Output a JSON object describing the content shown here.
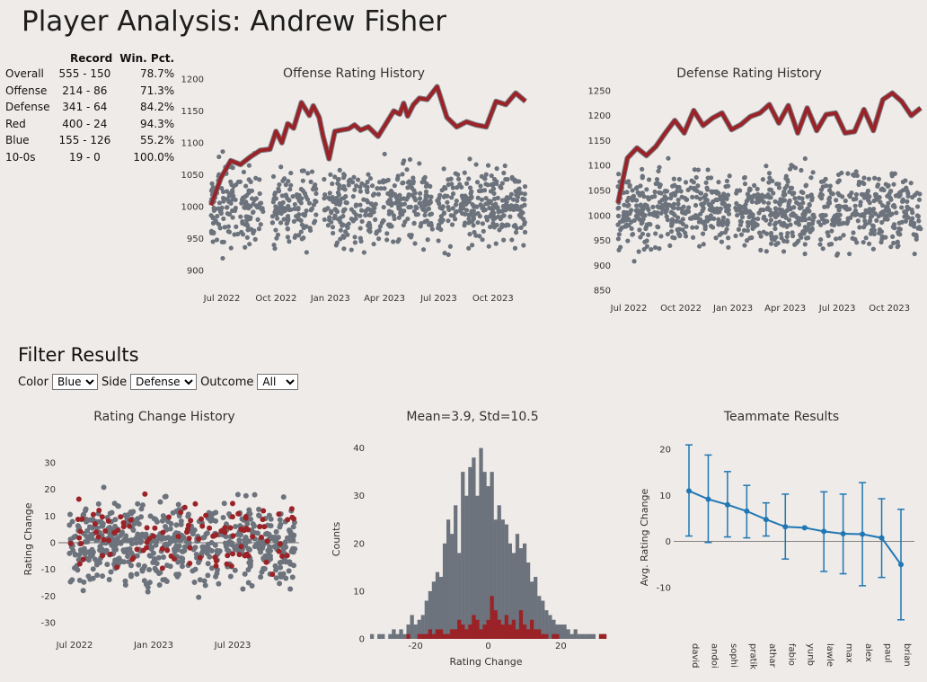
{
  "title": "Player Analysis: Andrew Fisher",
  "stats": {
    "headers": [
      "",
      "Record",
      "Win. Pct."
    ],
    "rows": [
      {
        "label": "Overall",
        "record": "555 - 150",
        "pct": "78.7%"
      },
      {
        "label": "Offense",
        "record": "214 - 86",
        "pct": "71.3%"
      },
      {
        "label": "Defense",
        "record": "341 - 64",
        "pct": "84.2%"
      },
      {
        "label": "Red",
        "record": "400 - 24",
        "pct": "94.3%"
      },
      {
        "label": "Blue",
        "record": "155 - 126",
        "pct": "55.2%"
      },
      {
        "label": "10-0s",
        "record": "19 - 0",
        "pct": "100.0%"
      }
    ]
  },
  "filters": {
    "heading": "Filter Results",
    "color_label": "Color",
    "color_value": "Blue",
    "side_label": "Side",
    "side_value": "Defense",
    "outcome_label": "Outcome",
    "outcome_value": "All"
  },
  "colors": {
    "red": "#9b2226",
    "gray": "#6c737c",
    "blue": "#1f77b4",
    "background": "#efebe8"
  },
  "chart_data": [
    {
      "id": "offense",
      "type": "line",
      "title": "Offense Rating History",
      "xlabel": "",
      "ylabel": "",
      "x_ticks": [
        "Jul 2022",
        "Oct 2022",
        "Jan 2023",
        "Apr 2023",
        "Jul 2023",
        "Oct 2023"
      ],
      "y_ticks": [
        900,
        950,
        1000,
        1050,
        1100,
        1150,
        1200
      ],
      "ylim": [
        880,
        1200
      ],
      "series": [
        {
          "color": "#9b2226",
          "x": [
            0,
            0.5,
            1,
            1.5,
            2,
            2.5,
            3,
            3.3,
            3.6,
            3.9,
            4.2,
            4.6,
            5,
            5.2,
            5.5,
            5.7,
            6,
            6.3,
            6.6,
            7,
            7.3,
            7.6,
            8,
            8.5,
            9,
            9.3,
            9.6,
            9.8,
            10,
            10.3,
            10.6,
            11,
            11.5,
            12,
            12.5,
            13,
            13.5,
            14,
            14.5,
            15,
            15.5,
            16
          ],
          "y": [
            1002,
            1045,
            1072,
            1066,
            1078,
            1088,
            1090,
            1118,
            1100,
            1130,
            1123,
            1163,
            1143,
            1158,
            1140,
            1110,
            1075,
            1118,
            1120,
            1122,
            1128,
            1120,
            1125,
            1110,
            1135,
            1150,
            1145,
            1162,
            1142,
            1160,
            1170,
            1168,
            1188,
            1140,
            1125,
            1133,
            1128,
            1125,
            1165,
            1160,
            1178,
            1165
          ]
        }
      ],
      "scatter_note": "Opponent ratings shown as gray points, roughly 900–1100 across the full date range"
    },
    {
      "id": "defense",
      "type": "line",
      "title": "Defense Rating History",
      "xlabel": "",
      "ylabel": "",
      "x_ticks": [
        "Jul 2022",
        "Oct 2022",
        "Jan 2023",
        "Apr 2023",
        "Jul 2023",
        "Oct 2023"
      ],
      "y_ticks": [
        850,
        900,
        950,
        1000,
        1050,
        1100,
        1150,
        1200,
        1250
      ],
      "ylim": [
        845,
        1255
      ],
      "series": [
        {
          "color": "#9b2226",
          "x": [
            0,
            0.5,
            1,
            1.5,
            2,
            2.5,
            3,
            3.5,
            4,
            4.5,
            5,
            5.5,
            6,
            6.5,
            7,
            7.5,
            8,
            8.5,
            9,
            9.5,
            10,
            10.5,
            11,
            11.5,
            12,
            12.5,
            13,
            13.5,
            14,
            14.5,
            15,
            15.5,
            16
          ],
          "y": [
            1025,
            1115,
            1135,
            1120,
            1138,
            1165,
            1190,
            1165,
            1210,
            1180,
            1195,
            1205,
            1172,
            1182,
            1198,
            1205,
            1222,
            1185,
            1220,
            1165,
            1215,
            1170,
            1202,
            1205,
            1165,
            1168,
            1212,
            1170,
            1232,
            1245,
            1228,
            1200,
            1215
          ]
        }
      ],
      "scatter_note": "Opponent ratings shown as gray points, roughly 870–1160 across the full date range"
    },
    {
      "id": "change",
      "type": "scatter",
      "title": "Rating Change History",
      "xlabel": "",
      "ylabel": "Rating Change",
      "x_ticks": [
        "Jul 2022",
        "Jan 2023",
        "Jul 2023"
      ],
      "y_ticks": [
        -30,
        -20,
        -10,
        0,
        10,
        20,
        30
      ],
      "ylim": [
        -35,
        35
      ],
      "series": [
        {
          "color": "#6c737c",
          "note": "all games"
        },
        {
          "color": "#9b2226",
          "note": "filtered games"
        }
      ]
    },
    {
      "id": "hist",
      "type": "bar",
      "title": "Mean=3.9, Std=10.5",
      "xlabel": "Rating Change",
      "ylabel": "Counts",
      "x_ticks": [
        -20,
        0,
        20
      ],
      "y_ticks": [
        0,
        10,
        20,
        30,
        40
      ],
      "xlim": [
        -33,
        33
      ],
      "ylim": [
        0,
        42
      ],
      "bins": [
        -32,
        -31,
        -30,
        -29,
        -28,
        -27,
        -26,
        -25,
        -24,
        -23,
        -22,
        -21,
        -20,
        -19,
        -18,
        -17,
        -16,
        -15,
        -14,
        -13,
        -12,
        -11,
        -10,
        -9,
        -8,
        -7,
        -6,
        -5,
        -4,
        -3,
        -2,
        -1,
        0,
        1,
        2,
        3,
        4,
        5,
        6,
        7,
        8,
        9,
        10,
        11,
        12,
        13,
        14,
        15,
        16,
        17,
        18,
        19,
        20,
        21,
        22,
        23,
        24,
        25,
        26,
        27,
        28,
        29,
        30,
        31,
        32
      ],
      "series": [
        {
          "name": "",
          "color": "#6c737c",
          "values": [
            1,
            0,
            1,
            1,
            0,
            1,
            2,
            1,
            2,
            1,
            3,
            5,
            3,
            4,
            5,
            8,
            10,
            12,
            14,
            13,
            20,
            25,
            22,
            28,
            18,
            35,
            30,
            36,
            38,
            30,
            40,
            35,
            32,
            35,
            25,
            28,
            25,
            24,
            20,
            18,
            22,
            19,
            20,
            16,
            12,
            13,
            9,
            8,
            6,
            5,
            4,
            3,
            3,
            3,
            2,
            1,
            2,
            1,
            1,
            1,
            1,
            1,
            0,
            1,
            1
          ]
        },
        {
          "name": "",
          "color": "#9b2226",
          "values": [
            0,
            0,
            0,
            0,
            0,
            0,
            0,
            0,
            0,
            0,
            1,
            0,
            0,
            1,
            1,
            1,
            2,
            1,
            2,
            2,
            1,
            1,
            2,
            2,
            4,
            3,
            2,
            3,
            5,
            4,
            2,
            3,
            4,
            9,
            6,
            4,
            3,
            5,
            3,
            4,
            2,
            6,
            3,
            2,
            4,
            2,
            2,
            1,
            1,
            0,
            1,
            1,
            0,
            0,
            0,
            0,
            0,
            0,
            0,
            0,
            0,
            0,
            0,
            1,
            1
          ]
        }
      ]
    },
    {
      "id": "teammates",
      "type": "scatter",
      "title": "Teammate Results",
      "xlabel": "",
      "ylabel": "Avg. Rating Change",
      "categories": [
        "david",
        "andoi",
        "sophi",
        "pratik",
        "athar",
        "fabio",
        "yunb",
        "lawle",
        "max",
        "alex",
        "paul",
        "brian"
      ],
      "values": [
        11,
        9.2,
        8,
        6.6,
        4.8,
        3.2,
        3,
        2.2,
        1.7,
        1.6,
        0.8,
        -5
      ],
      "err_low": [
        1.2,
        -0.2,
        1,
        0.8,
        1.2,
        -3.8,
        3,
        -6.5,
        -7,
        -9.6,
        -7.8,
        -17
      ],
      "err_high": [
        21,
        18.8,
        15.2,
        12.2,
        8.4,
        10.3,
        3,
        10.8,
        10.3,
        12.8,
        9.3,
        7
      ],
      "y_ticks": [
        -10,
        0,
        10,
        20
      ],
      "ylim": [
        -19,
        22
      ],
      "color": "#1f77b4"
    }
  ]
}
